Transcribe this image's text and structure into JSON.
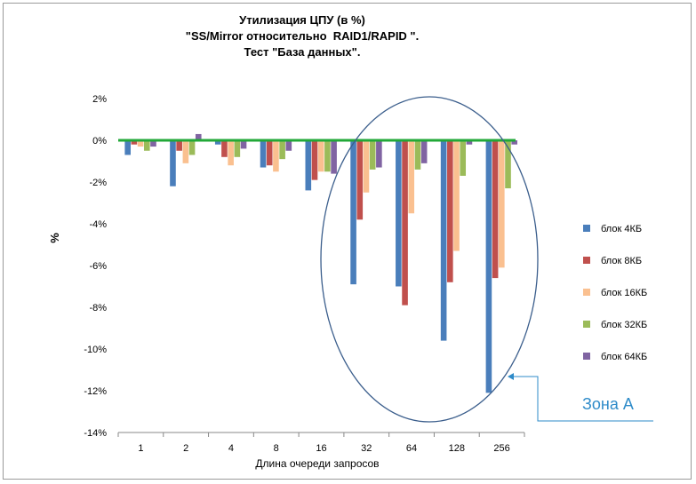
{
  "chart_data": {
    "type": "bar",
    "title_lines": [
      "Утилизация ЦПУ (в %)",
      "\"SS/Mirror относительно  RAID1/RAPID \".",
      "Тест \"База данных\"."
    ],
    "xlabel": "Длина очереди запросов",
    "ylabel": "%",
    "ylim": [
      -14,
      2
    ],
    "yticks": [
      2,
      0,
      -2,
      -4,
      -6,
      -8,
      -10,
      -12,
      -14
    ],
    "ytick_suffix": "%",
    "grid": false,
    "legend_position": "right",
    "categories": [
      "1",
      "2",
      "4",
      "8",
      "16",
      "32",
      "64",
      "128",
      "256"
    ],
    "series": [
      {
        "name": "блок 4КБ",
        "color": "#4a7ebb",
        "values": [
          -0.7,
          -2.2,
          -0.2,
          -1.3,
          -2.4,
          -6.9,
          -7.0,
          -9.6,
          -12.1
        ]
      },
      {
        "name": "блок 8КБ",
        "color": "#c0504d",
        "values": [
          -0.2,
          -0.5,
          -0.8,
          -1.2,
          -1.9,
          -3.8,
          -7.9,
          -6.8,
          -6.6
        ]
      },
      {
        "name": "блок 16КБ",
        "color": "#fac090",
        "values": [
          -0.3,
          -1.1,
          -1.2,
          -1.5,
          -1.5,
          -2.5,
          -3.5,
          -5.3,
          -6.1
        ]
      },
      {
        "name": "блок 32КБ",
        "color": "#9bbb59",
        "values": [
          -0.5,
          -0.7,
          -0.8,
          -0.9,
          -1.5,
          -1.4,
          -1.4,
          -1.7,
          -2.3
        ]
      },
      {
        "name": "блок 64КБ",
        "color": "#8064a2",
        "values": [
          -0.3,
          0.3,
          -0.4,
          -0.5,
          -1.6,
          -1.3,
          -1.1,
          -0.2,
          -0.2
        ]
      }
    ],
    "zero_line_color": "#22a838",
    "annotation": {
      "text": "Зона А",
      "color": "#2e8bc9",
      "ellipse_color": "#3b5e8c"
    }
  }
}
